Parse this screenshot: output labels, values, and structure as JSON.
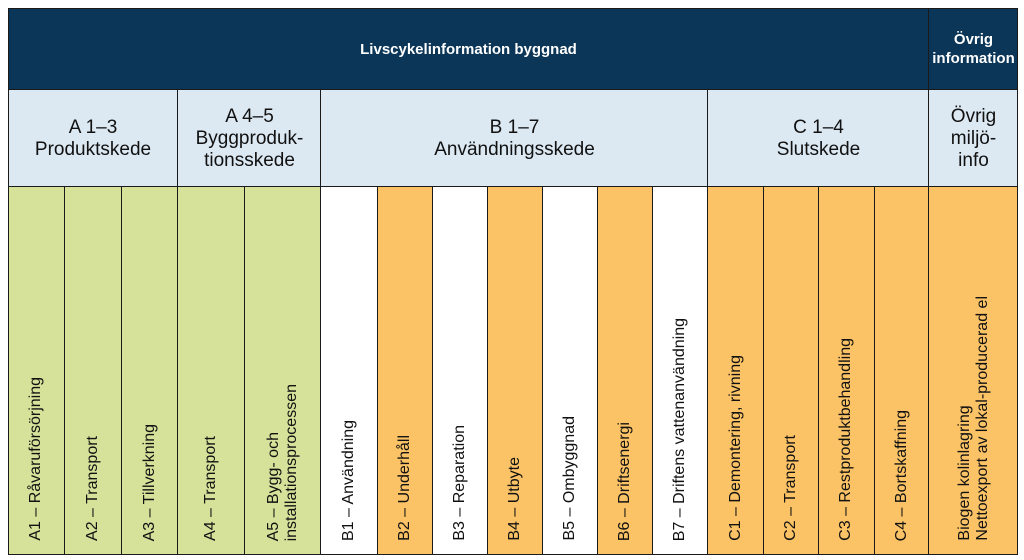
{
  "header": {
    "main_title": "Livscykelinformation byggnad",
    "other_title": [
      "Övrig",
      "information"
    ]
  },
  "groups": [
    {
      "code": "A 1–3",
      "name": "Produktskede"
    },
    {
      "code": "A 4–5",
      "name": [
        "Byggproduk-",
        "tionsskede"
      ]
    },
    {
      "code": "B 1–7",
      "name": "Användningsskede"
    },
    {
      "code": "C 1–4",
      "name": "Slutskede"
    },
    {
      "code": "Övrig",
      "name": [
        "miljö-",
        "info"
      ]
    }
  ],
  "columns": [
    {
      "label": "A1 – Råvaruförsörjning",
      "color": "#d6e29a"
    },
    {
      "label": "A2 – Transport",
      "color": "#d6e29a"
    },
    {
      "label": "A3 – Tillverkning",
      "color": "#d6e29a"
    },
    {
      "label": "A4 – Transport",
      "color": "#d6e29a"
    },
    {
      "label": [
        "A5 – Bygg- och",
        "installationsprocessen"
      ],
      "color": "#d6e29a"
    },
    {
      "label": "B1 – Användning",
      "color": "#ffffff"
    },
    {
      "label": "B2 – Underhåll",
      "color": "#fbc366"
    },
    {
      "label": "B3 – Reparation",
      "color": "#ffffff"
    },
    {
      "label": "B4 – Utbyte",
      "color": "#fbc366"
    },
    {
      "label": "B5 – Ombyggnad",
      "color": "#ffffff"
    },
    {
      "label": "B6 – Driftsenergi",
      "color": "#fbc366"
    },
    {
      "label": "B7 – Driftens vattenanvändning",
      "color": "#ffffff"
    },
    {
      "label": "C1 – Demontering, rivning",
      "color": "#fbc366"
    },
    {
      "label": "C2 – Transport",
      "color": "#fbc366"
    },
    {
      "label": "C3 – Restproduktbehandling",
      "color": "#fbc366"
    },
    {
      "label": "C4 – Bortskaffning",
      "color": "#fbc366"
    },
    {
      "label": [
        "Biogen kolinlagring",
        "Nettoexport av lokal-producerad el"
      ],
      "color": "#fbc366"
    }
  ],
  "colors": {
    "header_bg": "#0b3657",
    "group_bg": "#dce9f3",
    "green": "#d6e29a",
    "orange": "#fbc366"
  }
}
